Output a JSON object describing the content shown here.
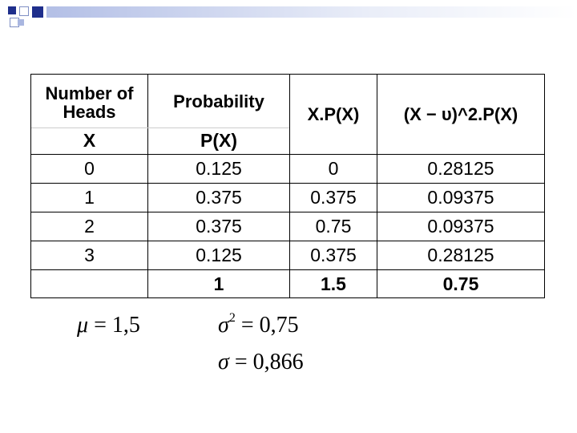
{
  "table": {
    "header": {
      "number_of_heads": "Number of Heads",
      "probability": "Probability",
      "x": "X",
      "px": "P(X)",
      "xpx": "X.P(X)",
      "variance_term": "(X − υ)^2.P(X)"
    },
    "rows": [
      {
        "x": "0",
        "p": "0.125",
        "xp": "0",
        "v": "0.28125"
      },
      {
        "x": "1",
        "p": "0.375",
        "xp": "0.375",
        "v": "0.09375"
      },
      {
        "x": "2",
        "p": "0.375",
        "xp": "0.75",
        "v": "0.09375"
      },
      {
        "x": "3",
        "p": "0.125",
        "xp": "0.375",
        "v": "0.28125"
      }
    ],
    "totals": {
      "p": "1",
      "xp": "1.5",
      "v": "0.75"
    }
  },
  "formulas": {
    "mu_symbol": "μ",
    "mu_value": "= 1,5",
    "sigma2_symbol": "σ",
    "sigma2_exp": "2",
    "sigma2_value": "= 0,75",
    "sigma_symbol": "σ",
    "sigma_value": "= 0,866"
  }
}
